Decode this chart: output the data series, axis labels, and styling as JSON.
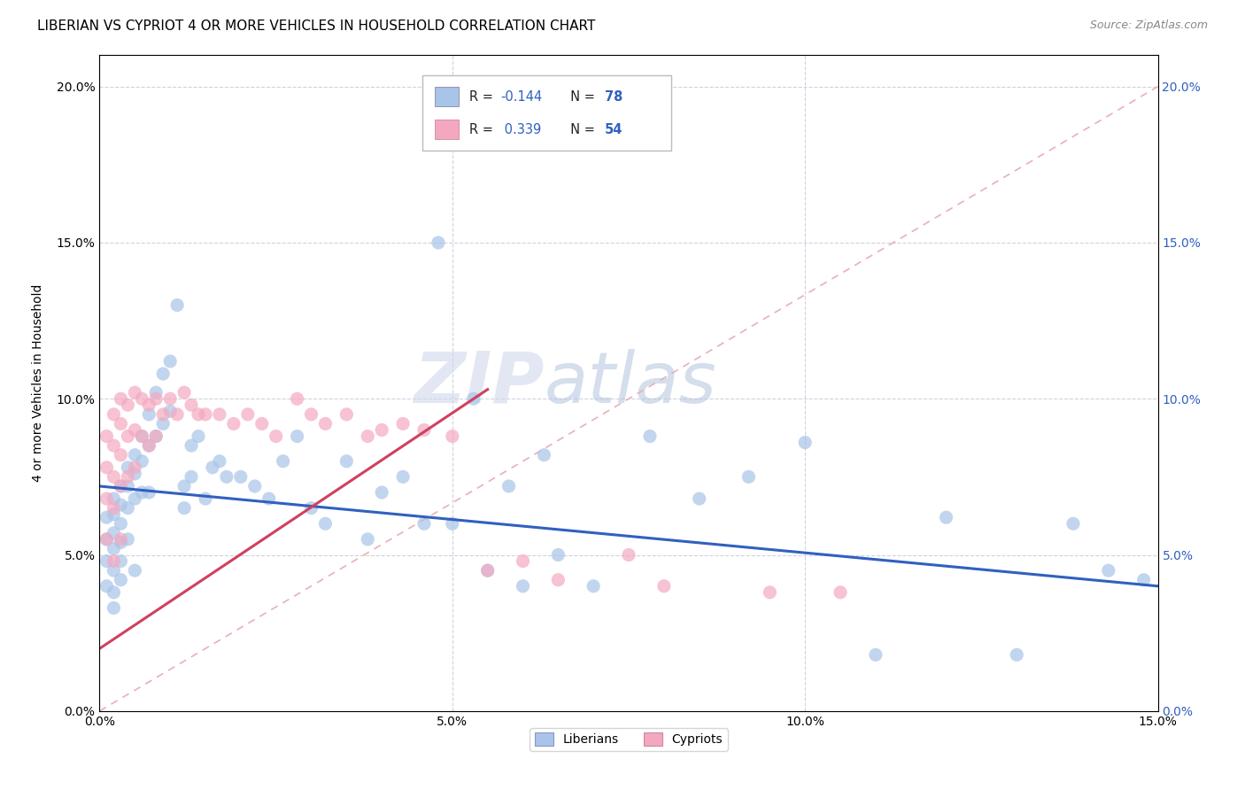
{
  "title": "LIBERIAN VS CYPRIOT 4 OR MORE VEHICLES IN HOUSEHOLD CORRELATION CHART",
  "source": "Source: ZipAtlas.com",
  "xmin": 0.0,
  "xmax": 0.15,
  "ymin": 0.0,
  "ymax": 0.21,
  "liberian_color": "#a8c4e8",
  "cypriot_color": "#f4a8c0",
  "liberian_line_color": "#3060c0",
  "cypriot_line_color": "#d04060",
  "diagonal_color": "#e8b0b8",
  "watermark_zip": "ZIP",
  "watermark_atlas": "atlas",
  "lib_R": "-0.144",
  "lib_N": "78",
  "cyp_R": "0.339",
  "cyp_N": "54",
  "liberian_x": [
    0.001,
    0.001,
    0.001,
    0.001,
    0.002,
    0.002,
    0.002,
    0.002,
    0.002,
    0.002,
    0.002,
    0.003,
    0.003,
    0.003,
    0.003,
    0.003,
    0.003,
    0.004,
    0.004,
    0.004,
    0.004,
    0.005,
    0.005,
    0.005,
    0.005,
    0.006,
    0.006,
    0.006,
    0.007,
    0.007,
    0.007,
    0.008,
    0.008,
    0.009,
    0.009,
    0.01,
    0.01,
    0.011,
    0.012,
    0.012,
    0.013,
    0.013,
    0.014,
    0.015,
    0.016,
    0.017,
    0.018,
    0.02,
    0.022,
    0.024,
    0.026,
    0.028,
    0.03,
    0.032,
    0.035,
    0.038,
    0.04,
    0.043,
    0.046,
    0.05,
    0.055,
    0.06,
    0.065,
    0.07,
    0.078,
    0.085,
    0.092,
    0.1,
    0.11,
    0.12,
    0.13,
    0.138,
    0.143,
    0.148,
    0.048,
    0.053,
    0.058,
    0.063
  ],
  "liberian_y": [
    0.062,
    0.055,
    0.048,
    0.04,
    0.068,
    0.063,
    0.057,
    0.052,
    0.045,
    0.038,
    0.033,
    0.072,
    0.066,
    0.06,
    0.054,
    0.048,
    0.042,
    0.078,
    0.072,
    0.065,
    0.055,
    0.082,
    0.076,
    0.068,
    0.045,
    0.088,
    0.08,
    0.07,
    0.095,
    0.085,
    0.07,
    0.102,
    0.088,
    0.108,
    0.092,
    0.112,
    0.096,
    0.13,
    0.065,
    0.072,
    0.085,
    0.075,
    0.088,
    0.068,
    0.078,
    0.08,
    0.075,
    0.075,
    0.072,
    0.068,
    0.08,
    0.088,
    0.065,
    0.06,
    0.08,
    0.055,
    0.07,
    0.075,
    0.06,
    0.06,
    0.045,
    0.04,
    0.05,
    0.04,
    0.088,
    0.068,
    0.075,
    0.086,
    0.018,
    0.062,
    0.018,
    0.06,
    0.045,
    0.042,
    0.15,
    0.1,
    0.072,
    0.082
  ],
  "cypriot_x": [
    0.001,
    0.001,
    0.001,
    0.001,
    0.002,
    0.002,
    0.002,
    0.002,
    0.002,
    0.003,
    0.003,
    0.003,
    0.003,
    0.003,
    0.004,
    0.004,
    0.004,
    0.005,
    0.005,
    0.005,
    0.006,
    0.006,
    0.007,
    0.007,
    0.008,
    0.008,
    0.009,
    0.01,
    0.011,
    0.012,
    0.013,
    0.014,
    0.015,
    0.017,
    0.019,
    0.021,
    0.023,
    0.025,
    0.028,
    0.03,
    0.032,
    0.035,
    0.038,
    0.04,
    0.043,
    0.046,
    0.05,
    0.055,
    0.06,
    0.065,
    0.075,
    0.08,
    0.095,
    0.105
  ],
  "cypriot_y": [
    0.088,
    0.078,
    0.068,
    0.055,
    0.095,
    0.085,
    0.075,
    0.065,
    0.048,
    0.1,
    0.092,
    0.082,
    0.072,
    0.055,
    0.098,
    0.088,
    0.075,
    0.102,
    0.09,
    0.078,
    0.1,
    0.088,
    0.098,
    0.085,
    0.1,
    0.088,
    0.095,
    0.1,
    0.095,
    0.102,
    0.098,
    0.095,
    0.095,
    0.095,
    0.092,
    0.095,
    0.092,
    0.088,
    0.1,
    0.095,
    0.092,
    0.095,
    0.088,
    0.09,
    0.092,
    0.09,
    0.088,
    0.045,
    0.048,
    0.042,
    0.05,
    0.04,
    0.038,
    0.038
  ]
}
